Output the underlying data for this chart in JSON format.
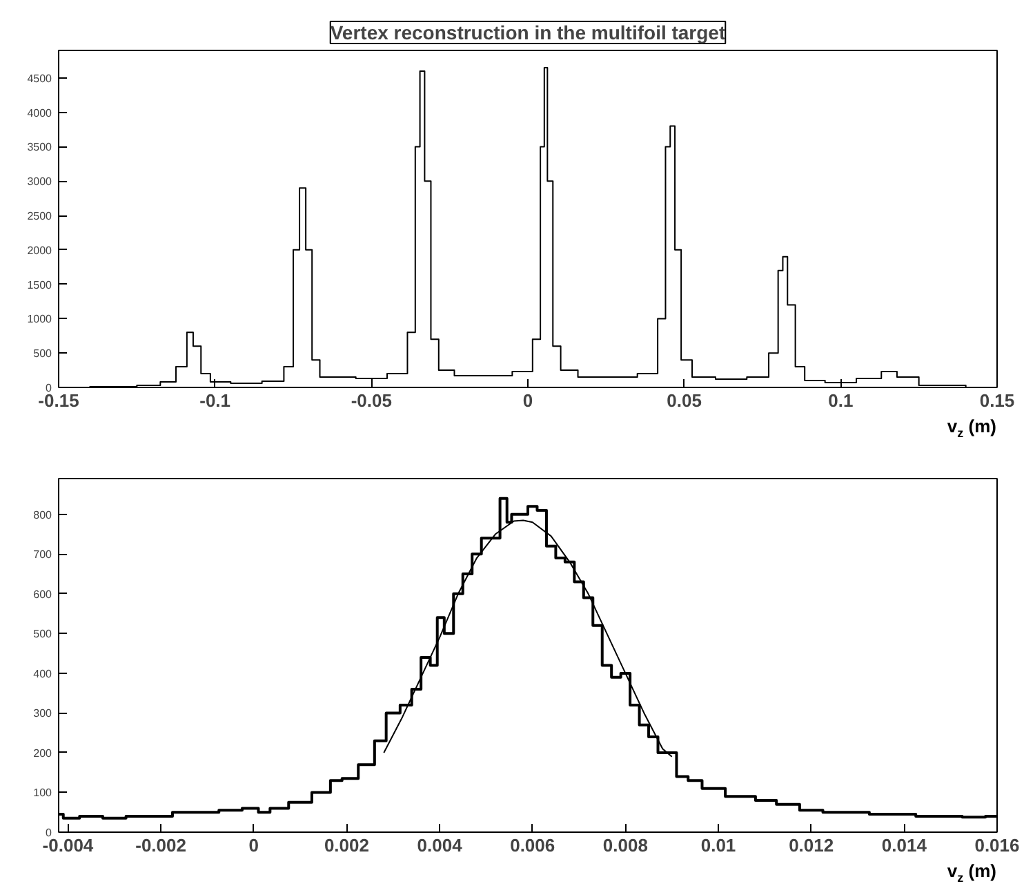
{
  "chart_data": [
    {
      "type": "step",
      "title": "Vertex reconstruction in the multifoil target",
      "xlabel": "v$_{z}$ (m)",
      "grid": false,
      "xlim": [
        -0.15,
        0.15
      ],
      "xticks": [
        -0.15,
        -0.1,
        -0.05,
        0,
        0.05,
        0.1,
        0.15
      ],
      "ylim": [
        0,
        4900
      ],
      "yticks": [
        0,
        500,
        1000,
        1500,
        2000,
        2500,
        3000,
        3500,
        4000,
        4500
      ],
      "series": [
        {
          "color": "#000000",
          "x": [
            -0.15,
            -0.13,
            -0.12,
            -0.115,
            -0.11,
            -0.108,
            -0.106,
            -0.103,
            -0.1,
            -0.09,
            -0.08,
            -0.076,
            -0.074,
            -0.072,
            -0.07,
            -0.068,
            -0.065,
            -0.06,
            -0.05,
            -0.04,
            -0.037,
            -0.035,
            -0.034,
            -0.032,
            -0.03,
            -0.027,
            -0.02,
            -0.01,
            0,
            0.003,
            0.005,
            0.0055,
            0.007,
            0.009,
            0.012,
            0.02,
            0.03,
            0.04,
            0.043,
            0.045,
            0.046,
            0.048,
            0.05,
            0.055,
            0.065,
            0.075,
            0.079,
            0.081,
            0.082,
            0.084,
            0.087,
            0.09,
            0.1,
            0.11,
            0.116,
            0.12,
            0.13,
            0.15
          ],
          "values": [
            0,
            10,
            30,
            80,
            300,
            800,
            600,
            200,
            80,
            60,
            90,
            300,
            2000,
            2900,
            2000,
            400,
            150,
            150,
            130,
            200,
            800,
            3500,
            4600,
            3000,
            700,
            250,
            170,
            170,
            230,
            700,
            3500,
            4650,
            3000,
            600,
            250,
            150,
            150,
            200,
            1000,
            3500,
            3800,
            2000,
            400,
            150,
            120,
            150,
            500,
            1700,
            1900,
            1200,
            300,
            100,
            70,
            130,
            230,
            150,
            30,
            0
          ]
        }
      ]
    },
    {
      "type": "step",
      "xlabel": "v$_{z}$ (m)",
      "grid": false,
      "xlim": [
        -0.0042,
        0.016
      ],
      "xticks": [
        -0.004,
        -0.002,
        0,
        0.002,
        0.004,
        0.006,
        0.008,
        0.01,
        0.012,
        0.014,
        0.016
      ],
      "ylim": [
        0,
        890
      ],
      "yticks": [
        0,
        100,
        200,
        300,
        400,
        500,
        600,
        700,
        800
      ],
      "series": [
        {
          "color": "#000000",
          "x": [
            -0.0042,
            -0.004,
            -0.0035,
            -0.003,
            -0.0025,
            -0.002,
            -0.0015,
            -0.001,
            -0.0005,
            0,
            0.0002,
            0.0005,
            0.001,
            0.0015,
            0.0018,
            0.002,
            0.0025,
            0.0027,
            0.003,
            0.0033,
            0.0035,
            0.0037,
            0.0039,
            0.004,
            0.0042,
            0.0044,
            0.0046,
            0.0048,
            0.005,
            0.0052,
            0.0054,
            0.0055,
            0.0056,
            0.0058,
            0.006,
            0.0062,
            0.0064,
            0.0066,
            0.0068,
            0.007,
            0.0072,
            0.0074,
            0.0076,
            0.0078,
            0.008,
            0.0082,
            0.0084,
            0.0086,
            0.0088,
            0.009,
            0.0092,
            0.0095,
            0.0098,
            0.01,
            0.0103,
            0.0106,
            0.011,
            0.0115,
            0.012,
            0.0125,
            0.013,
            0.0135,
            0.014,
            0.0145,
            0.015,
            0.0155,
            0.016
          ],
          "values": [
            45,
            35,
            40,
            35,
            40,
            40,
            50,
            50,
            55,
            60,
            50,
            60,
            75,
            100,
            130,
            135,
            170,
            230,
            300,
            320,
            360,
            440,
            420,
            540,
            500,
            600,
            650,
            700,
            740,
            740,
            840,
            780,
            800,
            800,
            820,
            810,
            720,
            690,
            680,
            630,
            590,
            520,
            420,
            390,
            400,
            320,
            270,
            240,
            200,
            200,
            140,
            130,
            110,
            110,
            90,
            90,
            80,
            70,
            55,
            50,
            50,
            45,
            45,
            40,
            40,
            38,
            40
          ]
        },
        {
          "type": "line",
          "color": "#000000",
          "x": [
            0.0028,
            0.0032,
            0.0036,
            0.004,
            0.0044,
            0.0048,
            0.0052,
            0.0056,
            0.0058,
            0.006,
            0.0064,
            0.0068,
            0.0072,
            0.0076,
            0.008,
            0.0084,
            0.0088,
            0.009
          ],
          "values": [
            200,
            290,
            390,
            490,
            600,
            690,
            750,
            783,
            785,
            780,
            745,
            680,
            600,
            500,
            400,
            300,
            210,
            190
          ]
        }
      ]
    }
  ]
}
